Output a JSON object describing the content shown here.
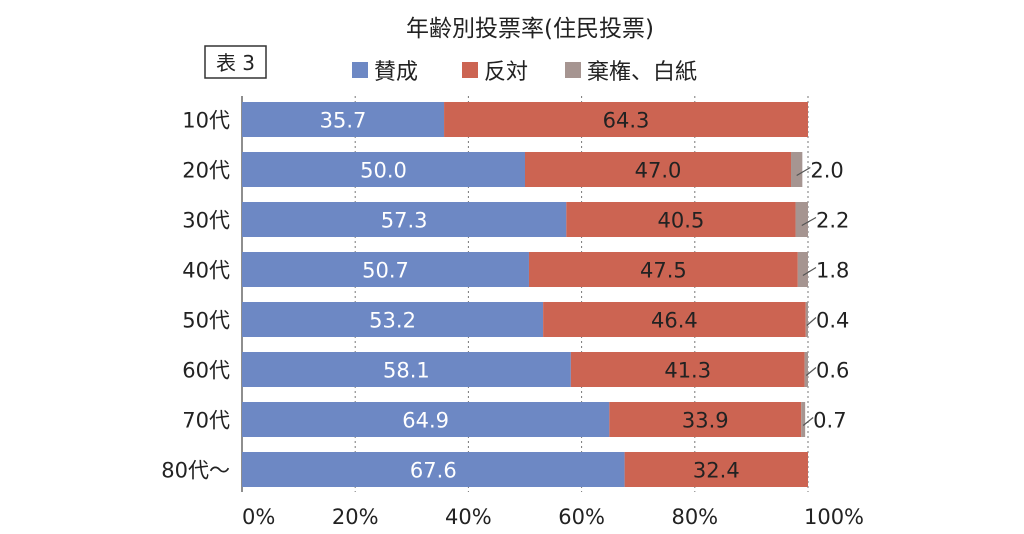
{
  "chart_data": {
    "type": "bar",
    "orientation": "horizontal",
    "stacked": true,
    "title": "年齢別投票率(住民投票)",
    "table_label": "表 3",
    "categories": [
      "10代",
      "20代",
      "30代",
      "40代",
      "50代",
      "60代",
      "70代",
      "80代〜"
    ],
    "series": [
      {
        "name": "賛成",
        "color": "#6d88c4",
        "values": [
          35.7,
          50.0,
          57.3,
          50.7,
          53.2,
          58.1,
          64.9,
          67.6
        ]
      },
      {
        "name": "反対",
        "color": "#cc6452",
        "values": [
          64.3,
          47.0,
          40.5,
          47.5,
          46.4,
          41.3,
          33.9,
          32.4
        ]
      },
      {
        "name": "棄権、白紙",
        "color": "#a69591",
        "values": [
          0,
          2.0,
          2.2,
          1.8,
          0.4,
          0.6,
          0.7,
          0
        ]
      }
    ],
    "xlim": [
      0,
      100
    ],
    "xticks": [
      "0%",
      "20%",
      "40%",
      "60%",
      "80%",
      "100%"
    ],
    "grid": true
  }
}
